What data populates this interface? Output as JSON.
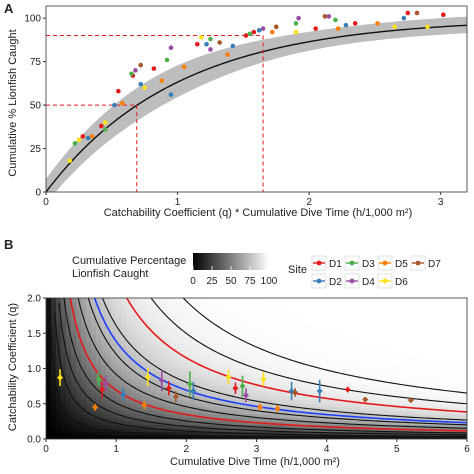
{
  "chart_data": [
    {
      "panel": "A",
      "type": "scatter",
      "xlabel": "Catchability Coefficient (q) * Cumulative Dive Time (h/1,000 m²)",
      "ylabel": "Cumulative % Lionfish Caught",
      "xlim": [
        0,
        3.2
      ],
      "ylim": [
        0,
        107
      ],
      "xticks": [
        0,
        1,
        2,
        3
      ],
      "yticks": [
        0,
        25,
        50,
        75,
        100
      ],
      "grid": false,
      "fit": {
        "model": "100*(1-exp(-x))",
        "ci_band": true
      },
      "reference_lines": [
        {
          "y": 50,
          "x": 0.69
        },
        {
          "y": 90,
          "x": 1.65
        }
      ],
      "series": [
        {
          "name": "D1",
          "color": "#e41a1c",
          "points": [
            [
              0.28,
              32
            ],
            [
              0.42,
              38
            ],
            [
              0.55,
              58
            ],
            [
              0.66,
              67
            ],
            [
              0.82,
              71
            ],
            [
              1.15,
              85
            ],
            [
              1.52,
              90
            ],
            [
              1.58,
              92
            ],
            [
              2.05,
              94
            ],
            [
              2.35,
              97
            ],
            [
              2.75,
              103
            ],
            [
              3.02,
              102
            ]
          ]
        },
        {
          "name": "D2",
          "color": "#377eb8",
          "points": [
            [
              0.32,
              31
            ],
            [
              0.52,
              50
            ],
            [
              0.72,
              62
            ],
            [
              0.95,
              56
            ],
            [
              1.22,
              85
            ],
            [
              1.42,
              84
            ],
            [
              1.62,
              93
            ],
            [
              2.28,
              96
            ],
            [
              2.72,
              100
            ]
          ]
        },
        {
          "name": "D3",
          "color": "#4daf4a",
          "points": [
            [
              0.22,
              28
            ],
            [
              0.45,
              36
            ],
            [
              0.65,
              68
            ],
            [
              0.92,
              76
            ],
            [
              1.25,
              88
            ],
            [
              1.55,
              91
            ],
            [
              1.9,
              97
            ],
            [
              2.2,
              99
            ]
          ]
        },
        {
          "name": "D4",
          "color": "#984ea3",
          "points": [
            [
              0.68,
              70
            ],
            [
              0.95,
              83
            ],
            [
              1.25,
              82
            ],
            [
              1.65,
              94
            ],
            [
              1.92,
              100
            ],
            [
              2.15,
              101
            ]
          ]
        },
        {
          "name": "D5",
          "color": "#ff7f00",
          "points": [
            [
              0.35,
              32
            ],
            [
              0.58,
              51
            ],
            [
              0.88,
              64
            ],
            [
              1.05,
              72
            ],
            [
              1.38,
              79
            ],
            [
              1.72,
              92
            ],
            [
              2.22,
              94
            ],
            [
              2.52,
              97
            ]
          ]
        },
        {
          "name": "D6",
          "color": "#ffe119",
          "points": [
            [
              0.18,
              18
            ],
            [
              0.25,
              30
            ],
            [
              0.45,
              40
            ],
            [
              0.75,
              60
            ],
            [
              1.18,
              89
            ],
            [
              1.9,
              92
            ],
            [
              2.65,
              95
            ],
            [
              2.9,
              95
            ]
          ]
        },
        {
          "name": "D7",
          "color": "#a65628",
          "points": [
            [
              0.72,
              73
            ],
            [
              1.32,
              86
            ],
            [
              1.75,
              95
            ],
            [
              2.12,
              101
            ],
            [
              2.82,
              103
            ]
          ]
        }
      ]
    },
    {
      "panel": "B",
      "type": "heatmap",
      "xlabel": "Cumulative Dive Time (h/1,000 m²)",
      "ylabel": "Catchability Coefficient (q)",
      "xlim": [
        0,
        6
      ],
      "ylim": [
        0,
        2
      ],
      "xticks": [
        0,
        1,
        2,
        3,
        4,
        5,
        6
      ],
      "yticks": [
        0.0,
        0.5,
        1.0,
        1.5,
        2.0
      ],
      "fill_legend": {
        "title_line1": "Cumulative Percentage",
        "title_line2": "Lionfish Caught",
        "ticks": [
          0,
          25,
          50,
          75,
          100
        ]
      },
      "contours": {
        "red_levels": [
          50,
          90
        ],
        "blue_levels": [
          75
        ],
        "black_levels": [
          10,
          20,
          30,
          40,
          60,
          70,
          80,
          95,
          98
        ]
      },
      "site_legend": {
        "title": "Site",
        "entries": [
          {
            "name": "D1",
            "color": "#e41a1c"
          },
          {
            "name": "D3",
            "color": "#4daf4a"
          },
          {
            "name": "D5",
            "color": "#ff7f00"
          },
          {
            "name": "D7",
            "color": "#a65628"
          },
          {
            "name": "D2",
            "color": "#377eb8"
          },
          {
            "name": "D4",
            "color": "#984ea3"
          },
          {
            "name": "D6",
            "color": "#ffe119"
          }
        ]
      },
      "points": [
        {
          "site": "D6",
          "x": 0.2,
          "y": 0.87,
          "lo": 0.75,
          "hi": 0.99
        },
        {
          "site": "D5",
          "x": 0.7,
          "y": 0.45,
          "lo": 0.4,
          "hi": 0.5
        },
        {
          "site": "D3",
          "x": 0.75,
          "y": 0.85,
          "lo": 0.75,
          "hi": 0.95
        },
        {
          "site": "D1",
          "x": 0.8,
          "y": 0.7,
          "lo": 0.58,
          "hi": 0.82
        },
        {
          "site": "D4",
          "x": 0.85,
          "y": 0.78,
          "lo": 0.65,
          "hi": 0.9
        },
        {
          "site": "D2",
          "x": 1.1,
          "y": 0.63,
          "lo": 0.53,
          "hi": 0.73
        },
        {
          "site": "D5",
          "x": 1.4,
          "y": 0.48,
          "lo": 0.42,
          "hi": 0.54
        },
        {
          "site": "D6",
          "x": 1.45,
          "y": 0.88,
          "lo": 0.75,
          "hi": 1.01
        },
        {
          "site": "D4",
          "x": 1.65,
          "y": 0.83,
          "lo": 0.68,
          "hi": 0.98
        },
        {
          "site": "D1",
          "x": 1.75,
          "y": 0.72,
          "lo": 0.62,
          "hi": 0.82
        },
        {
          "site": "D7",
          "x": 1.85,
          "y": 0.6,
          "lo": 0.52,
          "hi": 0.68
        },
        {
          "site": "D3",
          "x": 2.05,
          "y": 0.78,
          "lo": 0.6,
          "hi": 0.96
        },
        {
          "site": "D2",
          "x": 2.1,
          "y": 0.68,
          "lo": 0.55,
          "hi": 0.81
        },
        {
          "site": "D6",
          "x": 2.6,
          "y": 0.88,
          "lo": 0.78,
          "hi": 0.98
        },
        {
          "site": "D1",
          "x": 2.7,
          "y": 0.72,
          "lo": 0.64,
          "hi": 0.8
        },
        {
          "site": "D3",
          "x": 2.8,
          "y": 0.75,
          "lo": 0.6,
          "hi": 0.9
        },
        {
          "site": "D4",
          "x": 2.85,
          "y": 0.62,
          "lo": 0.52,
          "hi": 0.72
        },
        {
          "site": "D6",
          "x": 3.1,
          "y": 0.85,
          "lo": 0.75,
          "hi": 0.95
        },
        {
          "site": "D5",
          "x": 3.05,
          "y": 0.45,
          "lo": 0.4,
          "hi": 0.5
        },
        {
          "site": "D5",
          "x": 3.3,
          "y": 0.43,
          "lo": 0.38,
          "hi": 0.48
        },
        {
          "site": "D2",
          "x": 3.5,
          "y": 0.68,
          "lo": 0.55,
          "hi": 0.81
        },
        {
          "site": "D7",
          "x": 3.55,
          "y": 0.66,
          "lo": 0.6,
          "hi": 0.72
        },
        {
          "site": "D2",
          "x": 3.9,
          "y": 0.68,
          "lo": 0.52,
          "hi": 0.84
        },
        {
          "site": "D1",
          "x": 4.3,
          "y": 0.7,
          "lo": 0.66,
          "hi": 0.74
        },
        {
          "site": "D7",
          "x": 4.55,
          "y": 0.56,
          "lo": 0.53,
          "hi": 0.59
        },
        {
          "site": "D7",
          "x": 5.2,
          "y": 0.55,
          "lo": 0.52,
          "hi": 0.58
        }
      ]
    }
  ]
}
